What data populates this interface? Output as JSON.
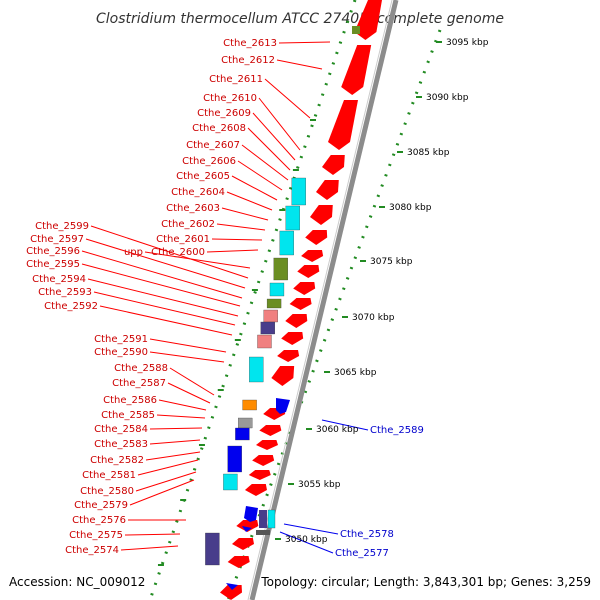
{
  "title": "Clostridium thermocellum ATCC 27405, complete genome",
  "accession": "Accession: NC_009012",
  "topology": "Topology: circular; Length: 3,843,301 bp; Genes: 3,259",
  "scale_labels": [
    "3095 kbp",
    "3090 kbp",
    "3085 kbp",
    "3080 kbp",
    "3075 kbp",
    "3070 kbp",
    "3065 kbp",
    "3060 kbp",
    "3055 kbp",
    "3050 kbp"
  ],
  "forward_labels": [
    "Cthe_2613",
    "Cthe_2612",
    "Cthe_2611",
    "Cthe_2610",
    "Cthe_2609",
    "Cthe_2608",
    "Cthe_2607",
    "Cthe_2606",
    "Cthe_2605",
    "Cthe_2604",
    "Cthe_2603",
    "Cthe_2602",
    "Cthe_2601",
    "Cthe_2600",
    "upp",
    "Cthe_2599",
    "Cthe_2597",
    "Cthe_2596",
    "Cthe_2595",
    "Cthe_2594",
    "Cthe_2593",
    "Cthe_2592",
    "Cthe_2591",
    "Cthe_2590",
    "Cthe_2588",
    "Cthe_2587",
    "Cthe_2586",
    "Cthe_2585",
    "Cthe_2584",
    "Cthe_2583",
    "Cthe_2582",
    "Cthe_2581",
    "Cthe_2580",
    "Cthe_2579",
    "Cthe_2576",
    "Cthe_2575",
    "Cthe_2574"
  ],
  "reverse_labels": [
    "Cthe_2589",
    "Cthe_2578",
    "Cthe_2577"
  ],
  "colors": {
    "forward": "#cc0000",
    "reverse": "#0000cc",
    "gene_red": "#ff0000",
    "gene_blue": "#0000ee",
    "cyan": "#00e5ee",
    "olive": "#6b8e23",
    "pink": "#f08080",
    "navy": "#483d8b",
    "orange": "#ff8c00",
    "grey_axis": "#999999",
    "dots": "#228b22"
  }
}
